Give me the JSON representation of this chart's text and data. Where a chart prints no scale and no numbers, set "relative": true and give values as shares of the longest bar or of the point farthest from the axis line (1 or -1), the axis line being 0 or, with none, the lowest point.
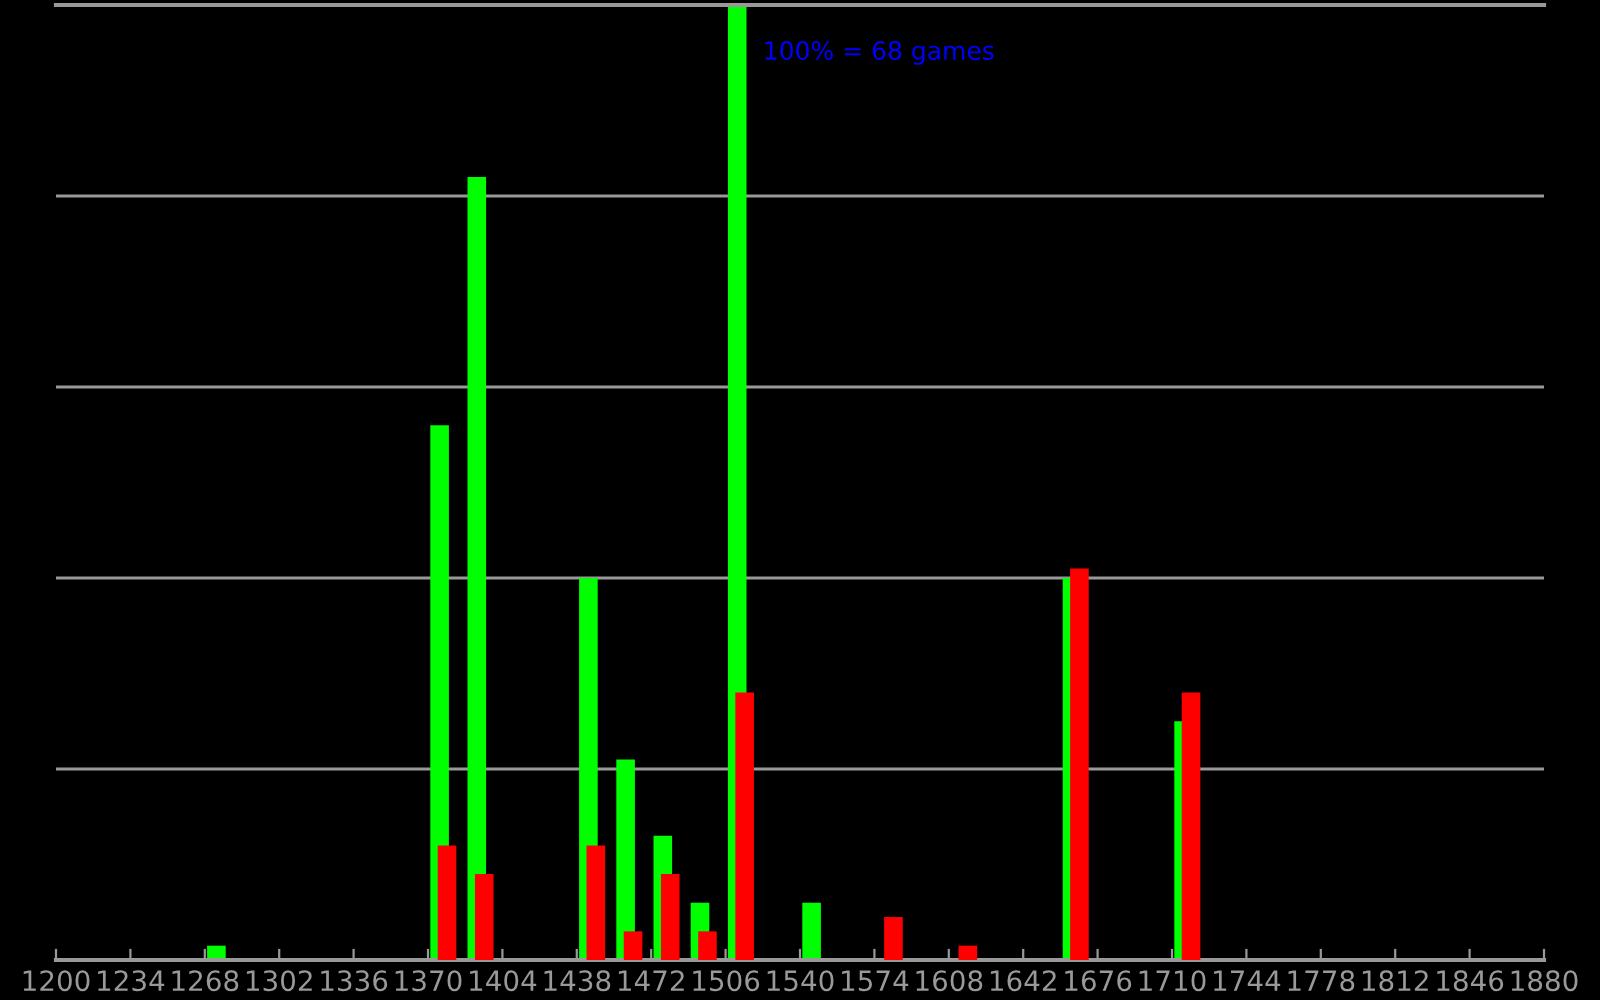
{
  "chart_data": {
    "type": "bar",
    "relative": true,
    "x": [
      1275,
      1377,
      1394,
      1445,
      1462,
      1479,
      1496,
      1513,
      1547,
      1581,
      1615,
      1666,
      1717
    ],
    "series": [
      {
        "color": "#00ff00",
        "values": [
          0.015,
          0.56,
          0.82,
          0.4,
          0.21,
          0.13,
          0.06,
          1,
          0.06,
          null,
          null,
          0.4,
          0.25
        ]
      },
      {
        "color": "#ff0000",
        "values": [
          null,
          0.12,
          0.09,
          0.12,
          0.03,
          0.09,
          0.03,
          0.28,
          null,
          0.045,
          0.015,
          0.41,
          0.28
        ]
      }
    ],
    "xlim": [
      1200,
      1880
    ],
    "xticks": [
      1200,
      1234,
      1268,
      1302,
      1336,
      1370,
      1404,
      1438,
      1472,
      1506,
      1540,
      1574,
      1608,
      1642,
      1676,
      1710,
      1744,
      1778,
      1812,
      1846,
      1880
    ],
    "grid": "y",
    "annotations": [
      "100% = 68 games"
    ]
  }
}
